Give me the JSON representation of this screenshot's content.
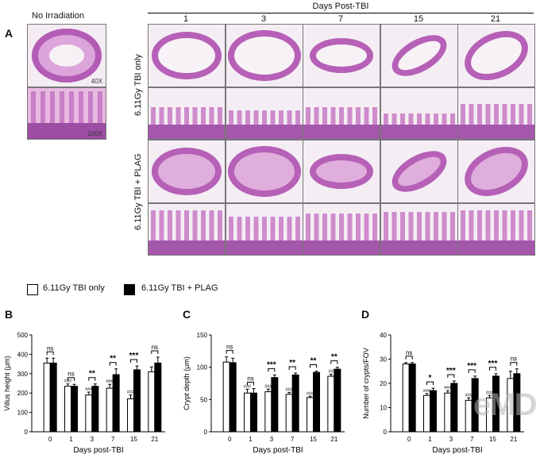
{
  "panel_a": {
    "letter": "A",
    "no_irradiation_label": "No Irradiation",
    "days_title": "Days Post-TBI",
    "days": [
      "1",
      "3",
      "7",
      "15",
      "21"
    ],
    "row_labels": [
      "6.11Gy TBI only",
      "6.11Gy TBI + PLAG"
    ],
    "magnifications": [
      "40X",
      "100X"
    ]
  },
  "legend": {
    "items": [
      {
        "label": "6.11Gy TBI only",
        "fill": "#ffffff"
      },
      {
        "label": "6.11Gy TBI + PLAG",
        "fill": "#000000"
      }
    ]
  },
  "chart_data": [
    {
      "panel": "B",
      "type": "bar",
      "ylabel": "Villus height (μm)",
      "xlabel": "Days post-TBI",
      "categories": [
        "0",
        "1",
        "3",
        "7",
        "15",
        "21"
      ],
      "ylim": [
        0,
        500
      ],
      "yticks": [
        "0",
        "100",
        "200",
        "300",
        "400",
        "500"
      ],
      "series": [
        {
          "name": "6.11Gy TBI only",
          "values": [
            355,
            235,
            190,
            225,
            170,
            310
          ],
          "errors": [
            25,
            12,
            15,
            20,
            20,
            25
          ]
        },
        {
          "name": "6.11Gy TBI + PLAG",
          "values": [
            355,
            235,
            235,
            295,
            320,
            355
          ],
          "errors": [
            25,
            10,
            12,
            30,
            20,
            30
          ]
        }
      ],
      "significance": [
        "ns",
        "ns",
        "**",
        "**",
        "***",
        "ns"
      ],
      "hash_marks": [
        "",
        "###",
        "###",
        "###",
        "###",
        ""
      ]
    },
    {
      "panel": "C",
      "type": "bar",
      "ylabel": "Crypt depth (μm)",
      "xlabel": "Days post-TBI",
      "categories": [
        "0",
        "1",
        "3",
        "7",
        "15",
        "21"
      ],
      "ylim": [
        0,
        150
      ],
      "yticks": [
        "0",
        "50",
        "100",
        "150"
      ],
      "series": [
        {
          "name": "6.11Gy TBI only",
          "values": [
            108,
            60,
            62,
            58,
            53,
            86
          ],
          "errors": [
            8,
            6,
            4,
            3,
            2,
            3
          ]
        },
        {
          "name": "6.11Gy TBI + PLAG",
          "values": [
            107,
            60,
            84,
            88,
            92,
            97
          ],
          "errors": [
            7,
            7,
            4,
            3,
            2,
            3
          ]
        }
      ],
      "significance": [
        "ns",
        "ns",
        "***",
        "**",
        "**",
        "**"
      ],
      "hash_marks": [
        "",
        "###",
        "###",
        "###",
        "###",
        "##"
      ]
    },
    {
      "panel": "D",
      "type": "bar",
      "ylabel": "Number of crypts/FOV",
      "xlabel": "Days post-TBI",
      "categories": [
        "0",
        "1",
        "3",
        "7",
        "15",
        "21"
      ],
      "ylim": [
        0,
        40
      ],
      "yticks": [
        "0",
        "10",
        "20",
        "30",
        "40"
      ],
      "series": [
        {
          "name": "6.11Gy TBI only",
          "values": [
            28,
            15,
            16,
            13,
            14,
            22
          ],
          "errors": [
            0.6,
            0.8,
            1,
            1,
            1,
            3
          ]
        },
        {
          "name": "6.11Gy TBI + PLAG",
          "values": [
            28,
            17,
            20,
            22,
            23,
            24
          ],
          "errors": [
            0.6,
            1,
            1,
            1,
            1,
            2
          ]
        }
      ],
      "significance": [
        "ns",
        "*",
        "***",
        "***",
        "***",
        "ns"
      ],
      "hash_marks": [
        "",
        "###",
        "###",
        "###",
        "###",
        ""
      ]
    }
  ],
  "watermark": {
    "text": "eMD"
  }
}
